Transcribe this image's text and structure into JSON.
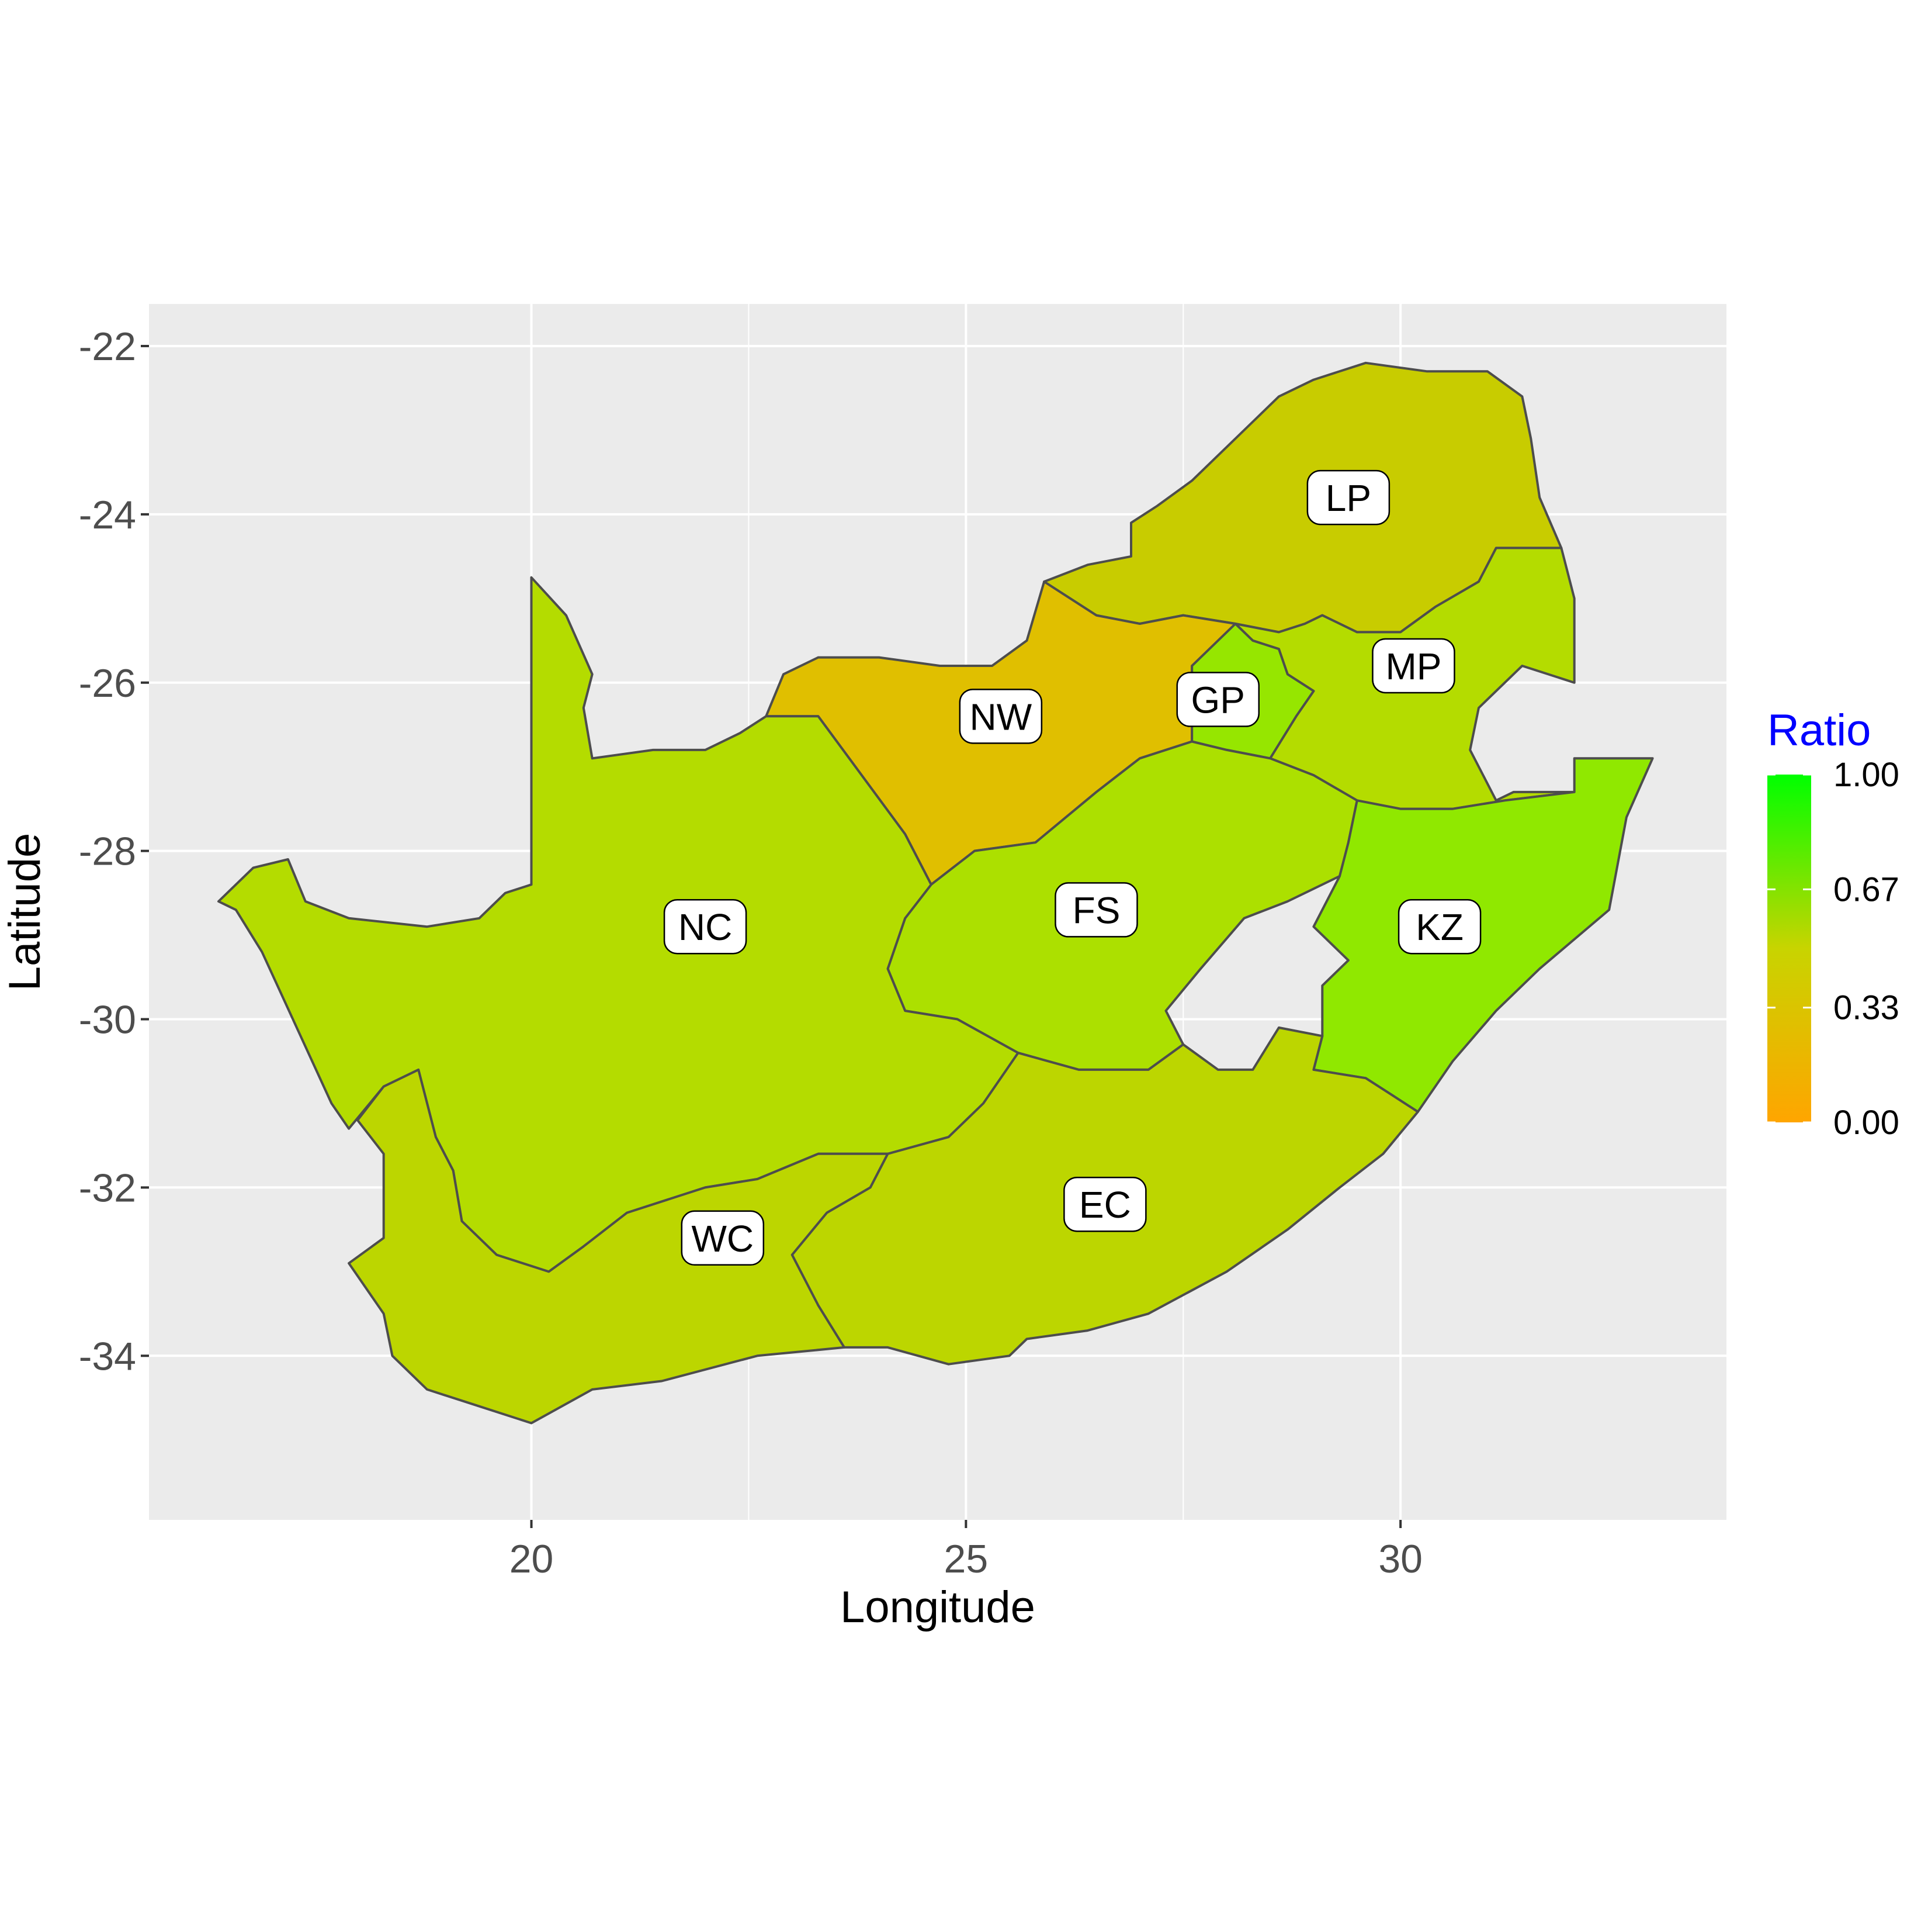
{
  "chart_data": {
    "type": "choropleth",
    "xlabel": "Longitude",
    "ylabel": "Latitude",
    "xlim": [
      15.6,
      33.75
    ],
    "ylim": [
      -35.95,
      -21.5
    ],
    "x_ticks": [
      20,
      25,
      30
    ],
    "y_ticks": [
      -22,
      -24,
      -26,
      -28,
      -30,
      -32,
      -34
    ],
    "grid": true,
    "panel_background": "#ebebeb",
    "border_color": "#4d4d4d",
    "legend": {
      "title": "Ratio",
      "title_color": "#0000ff",
      "position": "right",
      "ticks": [
        "1.00",
        "0.67",
        "0.33",
        "0.00"
      ],
      "tick_values": [
        1.0,
        0.67,
        0.33,
        0.0
      ],
      "color_low": "#ffa500",
      "color_high": "#00ff00"
    },
    "regions": [
      {
        "code": "LP",
        "ratio": 0.45,
        "color": "#c8cc00",
        "label_lon": 29.4,
        "label_lat": -23.8,
        "outline": [
          [
            25.9,
            -24.8
          ],
          [
            26.4,
            -24.6
          ],
          [
            26.9,
            -24.5
          ],
          [
            26.9,
            -24.1
          ],
          [
            27.2,
            -23.9
          ],
          [
            27.6,
            -23.6
          ],
          [
            27.9,
            -23.3
          ],
          [
            28.3,
            -22.9
          ],
          [
            28.6,
            -22.6
          ],
          [
            29.0,
            -22.4
          ],
          [
            29.6,
            -22.2
          ],
          [
            30.3,
            -22.3
          ],
          [
            31.0,
            -22.3
          ],
          [
            31.4,
            -22.6
          ],
          [
            31.5,
            -23.1
          ],
          [
            31.6,
            -23.8
          ],
          [
            31.85,
            -24.4
          ],
          [
            31.1,
            -24.4
          ],
          [
            30.9,
            -24.8
          ],
          [
            30.4,
            -25.1
          ],
          [
            30.0,
            -25.4
          ],
          [
            29.5,
            -25.4
          ],
          [
            29.1,
            -25.2
          ],
          [
            28.9,
            -25.3
          ],
          [
            28.6,
            -25.4
          ],
          [
            28.1,
            -25.3
          ],
          [
            27.5,
            -25.2
          ],
          [
            27.0,
            -25.3
          ],
          [
            26.5,
            -25.2
          ],
          [
            25.9,
            -24.8
          ]
        ]
      },
      {
        "code": "MP",
        "ratio": 0.55,
        "color": "#b4dc00",
        "label_lon": 30.15,
        "label_lat": -25.8,
        "outline": [
          [
            28.1,
            -25.3
          ],
          [
            28.6,
            -25.4
          ],
          [
            28.9,
            -25.3
          ],
          [
            29.1,
            -25.2
          ],
          [
            29.5,
            -25.4
          ],
          [
            30.0,
            -25.4
          ],
          [
            30.4,
            -25.1
          ],
          [
            30.9,
            -24.8
          ],
          [
            31.1,
            -24.4
          ],
          [
            31.85,
            -24.4
          ],
          [
            32.0,
            -25.0
          ],
          [
            32.0,
            -25.8
          ],
          [
            32.0,
            -26.0
          ],
          [
            31.4,
            -25.8
          ],
          [
            30.9,
            -26.3
          ],
          [
            30.8,
            -26.8
          ],
          [
            31.1,
            -27.4
          ],
          [
            31.3,
            -27.3
          ],
          [
            32.0,
            -27.3
          ],
          [
            31.2,
            -27.4
          ],
          [
            30.6,
            -27.5
          ],
          [
            30.0,
            -27.5
          ],
          [
            29.5,
            -27.4
          ],
          [
            29.0,
            -27.1
          ],
          [
            28.5,
            -26.9
          ],
          [
            28.8,
            -26.4
          ],
          [
            29.0,
            -26.1
          ],
          [
            28.7,
            -25.9
          ],
          [
            28.6,
            -25.6
          ],
          [
            28.3,
            -25.5
          ],
          [
            28.1,
            -25.3
          ]
        ]
      },
      {
        "code": "GP",
        "ratio": 0.78,
        "color": "#96e600",
        "label_lon": 27.9,
        "label_lat": -26.2,
        "outline": [
          [
            27.6,
            -25.8
          ],
          [
            28.1,
            -25.3
          ],
          [
            28.3,
            -25.5
          ],
          [
            28.6,
            -25.6
          ],
          [
            28.7,
            -25.9
          ],
          [
            29.0,
            -26.1
          ],
          [
            28.8,
            -26.4
          ],
          [
            28.5,
            -26.9
          ],
          [
            28.0,
            -26.8
          ],
          [
            27.6,
            -26.7
          ],
          [
            27.6,
            -26.3
          ],
          [
            27.6,
            -25.8
          ]
        ]
      },
      {
        "code": "NW",
        "ratio": 0.2,
        "color": "#e0bf00",
        "label_lon": 25.4,
        "label_lat": -26.4,
        "outline": [
          [
            22.7,
            -26.4
          ],
          [
            22.9,
            -25.9
          ],
          [
            23.3,
            -25.7
          ],
          [
            24.0,
            -25.7
          ],
          [
            24.7,
            -25.8
          ],
          [
            25.3,
            -25.8
          ],
          [
            25.7,
            -25.5
          ],
          [
            25.9,
            -24.8
          ],
          [
            26.5,
            -25.2
          ],
          [
            27.0,
            -25.3
          ],
          [
            27.5,
            -25.2
          ],
          [
            28.1,
            -25.3
          ],
          [
            27.6,
            -25.8
          ],
          [
            27.6,
            -26.3
          ],
          [
            27.6,
            -26.7
          ],
          [
            27.0,
            -26.9
          ],
          [
            26.5,
            -27.3
          ],
          [
            25.8,
            -27.9
          ],
          [
            25.1,
            -28.0
          ],
          [
            24.6,
            -28.4
          ],
          [
            24.3,
            -27.8
          ],
          [
            23.8,
            -27.1
          ],
          [
            23.3,
            -26.4
          ],
          [
            22.7,
            -26.4
          ]
        ]
      },
      {
        "code": "FS",
        "ratio": 0.57,
        "color": "#ace000",
        "label_lon": 26.5,
        "label_lat": -28.7,
        "outline": [
          [
            24.6,
            -28.4
          ],
          [
            25.1,
            -28.0
          ],
          [
            25.8,
            -27.9
          ],
          [
            26.5,
            -27.3
          ],
          [
            27.0,
            -26.9
          ],
          [
            27.6,
            -26.7
          ],
          [
            28.0,
            -26.8
          ],
          [
            28.5,
            -26.9
          ],
          [
            29.0,
            -27.1
          ],
          [
            29.5,
            -27.4
          ],
          [
            29.4,
            -27.9
          ],
          [
            29.3,
            -28.3
          ],
          [
            28.7,
            -28.6
          ],
          [
            28.2,
            -28.8
          ],
          [
            27.7,
            -29.4
          ],
          [
            27.3,
            -29.9
          ],
          [
            27.5,
            -30.3
          ],
          [
            27.1,
            -30.6
          ],
          [
            26.3,
            -30.6
          ],
          [
            25.6,
            -30.4
          ],
          [
            24.9,
            -30.0
          ],
          [
            24.3,
            -29.9
          ],
          [
            24.1,
            -29.4
          ],
          [
            24.3,
            -28.8
          ],
          [
            24.6,
            -28.4
          ]
        ]
      },
      {
        "code": "KZ",
        "ratio": 0.72,
        "color": "#90e800",
        "label_lon": 30.45,
        "label_lat": -28.9,
        "outline": [
          [
            29.5,
            -27.4
          ],
          [
            30.0,
            -27.5
          ],
          [
            30.6,
            -27.5
          ],
          [
            31.2,
            -27.4
          ],
          [
            32.0,
            -27.3
          ],
          [
            32.0,
            -26.9
          ],
          [
            32.9,
            -26.9
          ],
          [
            32.6,
            -27.6
          ],
          [
            32.4,
            -28.7
          ],
          [
            31.6,
            -29.4
          ],
          [
            31.1,
            -29.9
          ],
          [
            30.6,
            -30.5
          ],
          [
            30.2,
            -31.1
          ],
          [
            29.9,
            -30.9
          ],
          [
            29.6,
            -30.7
          ],
          [
            29.0,
            -30.6
          ],
          [
            29.1,
            -30.2
          ],
          [
            29.1,
            -29.6
          ],
          [
            29.4,
            -29.3
          ],
          [
            29.0,
            -28.9
          ],
          [
            29.3,
            -28.3
          ],
          [
            29.4,
            -27.9
          ],
          [
            29.5,
            -27.4
          ]
        ]
      },
      {
        "code": "NC",
        "ratio": 0.53,
        "color": "#b4dc00",
        "label_lon": 22.0,
        "label_lat": -28.9,
        "outline": [
          [
            20.0,
            -24.75
          ],
          [
            20.4,
            -25.2
          ],
          [
            20.7,
            -25.9
          ],
          [
            20.6,
            -26.3
          ],
          [
            20.7,
            -26.9
          ],
          [
            21.4,
            -26.8
          ],
          [
            22.0,
            -26.8
          ],
          [
            22.4,
            -26.6
          ],
          [
            22.7,
            -26.4
          ],
          [
            23.3,
            -26.4
          ],
          [
            23.8,
            -27.1
          ],
          [
            24.3,
            -27.8
          ],
          [
            24.6,
            -28.4
          ],
          [
            24.3,
            -28.8
          ],
          [
            24.1,
            -29.4
          ],
          [
            24.3,
            -29.9
          ],
          [
            24.9,
            -30.0
          ],
          [
            25.6,
            -30.4
          ],
          [
            25.2,
            -31.0
          ],
          [
            24.8,
            -31.4
          ],
          [
            24.1,
            -31.6
          ],
          [
            23.3,
            -31.6
          ],
          [
            22.6,
            -31.9
          ],
          [
            22.0,
            -32.0
          ],
          [
            21.1,
            -32.3
          ],
          [
            20.6,
            -32.7
          ],
          [
            20.2,
            -33.0
          ],
          [
            19.6,
            -32.8
          ],
          [
            19.2,
            -32.4
          ],
          [
            19.1,
            -31.8
          ],
          [
            18.9,
            -31.4
          ],
          [
            18.7,
            -30.6
          ],
          [
            18.3,
            -30.8
          ],
          [
            17.9,
            -31.3
          ],
          [
            17.7,
            -31.0
          ],
          [
            17.3,
            -30.1
          ],
          [
            16.9,
            -29.2
          ],
          [
            16.6,
            -28.7
          ],
          [
            16.4,
            -28.6
          ],
          [
            16.8,
            -28.2
          ],
          [
            17.2,
            -28.1
          ],
          [
            17.4,
            -28.6
          ],
          [
            17.9,
            -28.8
          ],
          [
            18.8,
            -28.9
          ],
          [
            19.4,
            -28.8
          ],
          [
            19.7,
            -28.5
          ],
          [
            20.0,
            -28.4
          ],
          [
            20.0,
            -24.75
          ]
        ]
      },
      {
        "code": "WC",
        "ratio": 0.48,
        "color": "#bcd600",
        "label_lon": 22.2,
        "label_lat": -32.6,
        "outline": [
          [
            18.3,
            -30.8
          ],
          [
            18.7,
            -30.6
          ],
          [
            18.9,
            -31.4
          ],
          [
            19.1,
            -31.8
          ],
          [
            19.2,
            -32.4
          ],
          [
            19.6,
            -32.8
          ],
          [
            20.2,
            -33.0
          ],
          [
            20.6,
            -32.7
          ],
          [
            21.1,
            -32.3
          ],
          [
            22.0,
            -32.0
          ],
          [
            22.6,
            -31.9
          ],
          [
            23.3,
            -31.6
          ],
          [
            24.1,
            -31.6
          ],
          [
            23.9,
            -32.0
          ],
          [
            23.4,
            -32.3
          ],
          [
            23.0,
            -32.8
          ],
          [
            23.3,
            -33.4
          ],
          [
            23.6,
            -33.9
          ],
          [
            22.6,
            -34.0
          ],
          [
            21.5,
            -34.3
          ],
          [
            20.7,
            -34.4
          ],
          [
            20.0,
            -34.8
          ],
          [
            19.4,
            -34.6
          ],
          [
            18.8,
            -34.4
          ],
          [
            18.4,
            -34.0
          ],
          [
            18.3,
            -33.5
          ],
          [
            17.9,
            -32.9
          ],
          [
            18.3,
            -32.6
          ],
          [
            18.3,
            -31.6
          ],
          [
            18.0,
            -31.2
          ],
          [
            18.3,
            -30.8
          ]
        ]
      },
      {
        "code": "EC",
        "ratio": 0.48,
        "color": "#bcd600",
        "label_lon": 26.6,
        "label_lat": -32.2,
        "outline": [
          [
            24.1,
            -31.6
          ],
          [
            24.8,
            -31.4
          ],
          [
            25.2,
            -31.0
          ],
          [
            25.6,
            -30.4
          ],
          [
            26.3,
            -30.6
          ],
          [
            27.1,
            -30.6
          ],
          [
            27.5,
            -30.3
          ],
          [
            27.9,
            -30.6
          ],
          [
            28.3,
            -30.6
          ],
          [
            28.6,
            -30.1
          ],
          [
            29.1,
            -30.2
          ],
          [
            29.0,
            -30.6
          ],
          [
            29.6,
            -30.7
          ],
          [
            29.9,
            -30.9
          ],
          [
            30.2,
            -31.1
          ],
          [
            29.8,
            -31.6
          ],
          [
            29.3,
            -32.0
          ],
          [
            28.7,
            -32.5
          ],
          [
            28.0,
            -33.0
          ],
          [
            27.1,
            -33.5
          ],
          [
            26.4,
            -33.7
          ],
          [
            25.7,
            -33.8
          ],
          [
            25.5,
            -34.0
          ],
          [
            24.8,
            -34.1
          ],
          [
            24.1,
            -33.9
          ],
          [
            23.6,
            -33.9
          ],
          [
            23.3,
            -33.4
          ],
          [
            23.0,
            -32.8
          ],
          [
            23.4,
            -32.3
          ],
          [
            23.9,
            -32.0
          ],
          [
            24.1,
            -31.6
          ]
        ]
      }
    ]
  }
}
